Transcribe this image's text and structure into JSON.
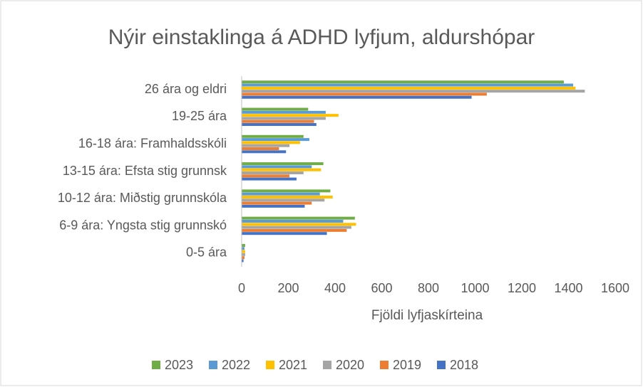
{
  "chart_data": {
    "type": "hbar",
    "title": "Nýir einstaklinga á ADHD lyfjum, aldurshópar",
    "x_label": "Fjöldi lyfjaskírteina",
    "categories": [
      "26 ára og eldri",
      "19-25 ára",
      "16-18 ára: Framhaldsskóli",
      "13-15 ára: Efsta stig grunnsk",
      "10-12 ára: Miðstig grunnskóla",
      "6-9 ára: Yngsta stig grunnskó",
      "0-5 ára"
    ],
    "series": [
      {
        "name": "2023",
        "color": "#70ad47",
        "values": [
          1380,
          285,
          265,
          350,
          380,
          485,
          15
        ]
      },
      {
        "name": "2022",
        "color": "#5b9bd5",
        "values": [
          1420,
          360,
          290,
          300,
          335,
          435,
          12
        ]
      },
      {
        "name": "2021",
        "color": "#ffc000",
        "values": [
          1430,
          415,
          250,
          340,
          390,
          490,
          15
        ]
      },
      {
        "name": "2020",
        "color": "#a5a5a5",
        "values": [
          1470,
          360,
          205,
          265,
          355,
          470,
          15
        ]
      },
      {
        "name": "2019",
        "color": "#ed7d31",
        "values": [
          1050,
          310,
          160,
          205,
          300,
          450,
          12
        ]
      },
      {
        "name": "2018",
        "color": "#4472c4",
        "values": [
          985,
          320,
          190,
          235,
          270,
          365,
          8
        ]
      }
    ],
    "xlim": [
      0,
      1600
    ],
    "xticks": [
      0,
      200,
      400,
      600,
      800,
      1000,
      1200,
      1400,
      1600
    ],
    "grid": false,
    "legend": "bottom"
  }
}
